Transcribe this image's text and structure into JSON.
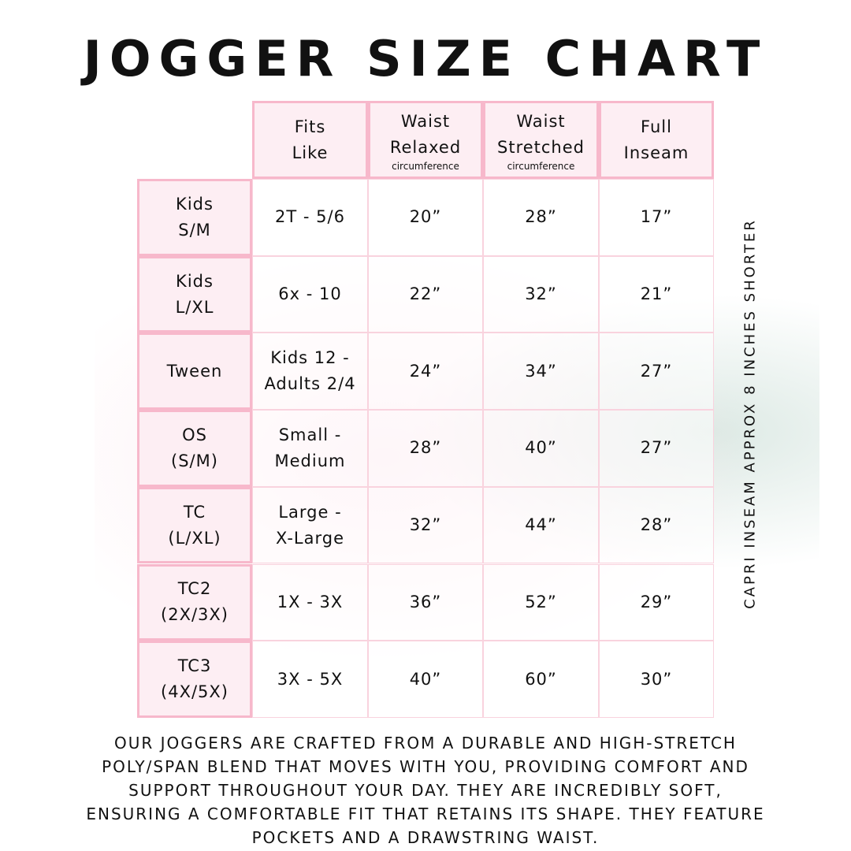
{
  "title": "JOGGER SIZE CHART",
  "headers": [
    {
      "lines": [
        "Fits",
        "Like"
      ],
      "sub": ""
    },
    {
      "lines": [
        "Waist",
        "Relaxed"
      ],
      "sub": "circumference"
    },
    {
      "lines": [
        "Waist",
        "Stretched"
      ],
      "sub": "circumference"
    },
    {
      "lines": [
        "Full",
        "Inseam"
      ],
      "sub": ""
    }
  ],
  "rows": [
    {
      "size": [
        "Kids",
        "S/M"
      ],
      "fits": [
        "2T - 5/6"
      ],
      "relaxed": "20”",
      "stretched": "28”",
      "inseam": "17”"
    },
    {
      "size": [
        "Kids",
        "L/XL"
      ],
      "fits": [
        "6x - 10"
      ],
      "relaxed": "22”",
      "stretched": "32”",
      "inseam": "21”"
    },
    {
      "size": [
        "Tween"
      ],
      "fits": [
        "Kids 12 -",
        "Adults 2/4"
      ],
      "relaxed": "24”",
      "stretched": "34”",
      "inseam": "27”"
    },
    {
      "size": [
        "OS",
        "(S/M)"
      ],
      "fits": [
        "Small -",
        "Medium"
      ],
      "relaxed": "28”",
      "stretched": "40”",
      "inseam": "27”"
    },
    {
      "size": [
        "TC",
        "(L/XL)"
      ],
      "fits": [
        "Large -",
        "X-Large"
      ],
      "relaxed": "32”",
      "stretched": "44”",
      "inseam": "28”"
    },
    {
      "size": [
        "TC2",
        "(2X/3X)"
      ],
      "fits": [
        "1X - 3X"
      ],
      "relaxed": "36”",
      "stretched": "52”",
      "inseam": "29”"
    },
    {
      "size": [
        "TC3",
        "(4X/5X)"
      ],
      "fits": [
        "3X - 5X"
      ],
      "relaxed": "40”",
      "stretched": "60”",
      "inseam": "30”"
    }
  ],
  "side_note": "CAPRI INSEAM APPROX 8 INCHES SHORTER",
  "footer": [
    "OUR JOGGERS ARE CRAFTED FROM A DURABLE AND HIGH-STRETCH",
    "POLY/SPAN BLEND THAT MOVES WITH YOU, PROVIDING COMFORT AND",
    "SUPPORT THROUGHOUT YOUR DAY. THEY ARE INCREDIBLY SOFT,",
    "ENSURING A COMFORTABLE FIT THAT RETAINS ITS SHAPE. THEY FEATURE",
    "POCKETS AND A DRAWSTRING WAIST."
  ],
  "colors": {
    "header_bg": "#fdeef3",
    "border": "#f7b8cb"
  }
}
